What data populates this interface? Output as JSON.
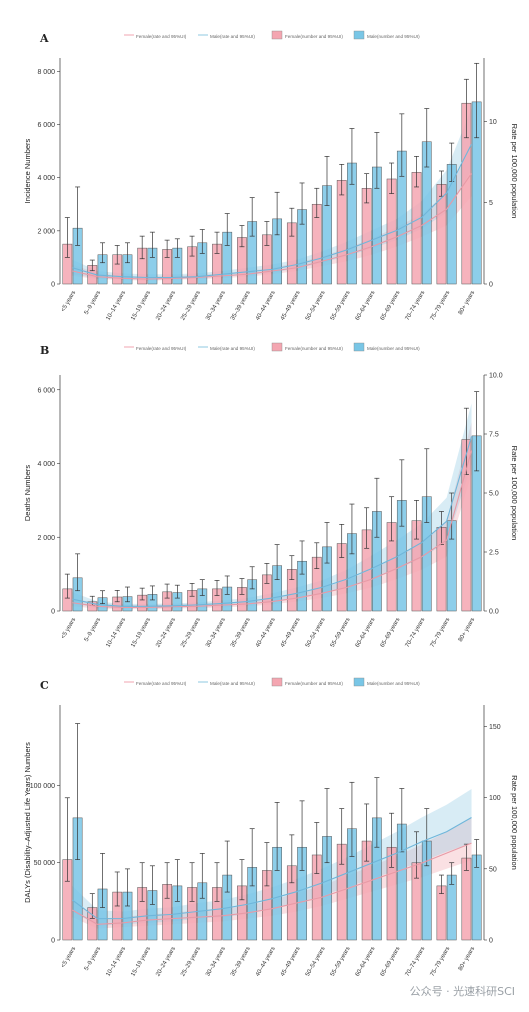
{
  "colors": {
    "female_fill": "#F4A6B1",
    "female_line": "#F0A6B0",
    "male_fill": "#79C6E6",
    "male_line": "#8FC8E2",
    "errorbar": "#333333",
    "axis": "#333333"
  },
  "legend": {
    "female_rate": "Female(rate and 95%UI)",
    "male_rate": "Male(rate and 95%UI)",
    "female_number": "Female(number and 95%UI)",
    "male_number": "Male(number and 95%UI)"
  },
  "watermark": "公众号 · 光速科研SCI",
  "chart_data": [
    {
      "panel": "A",
      "type": "bar",
      "ylabel": "Incidence Numbers",
      "y2label": "Rate per 100,000 population",
      "ylim": [
        0,
        8500
      ],
      "yticks": [
        0,
        2000,
        4000,
        6000,
        8000
      ],
      "y2lim": [
        0,
        13.9
      ],
      "y2ticks": [
        0,
        5,
        10
      ],
      "categories": [
        "<5 years",
        "5–9 years",
        "10–14 years",
        "15–19 years",
        "20–24 years",
        "25–29 years",
        "30–34 years",
        "35–39 years",
        "40–44 years",
        "45–49 years",
        "50–54 years",
        "55–59 years",
        "60–64 years",
        "65–69 years",
        "70–74 years",
        "75–79 years",
        "80+ years"
      ],
      "series": [
        {
          "name": "Female(number and 95%UI)",
          "kind": "bar",
          "values": [
            1500,
            700,
            1100,
            1350,
            1300,
            1400,
            1500,
            1750,
            1850,
            2300,
            3000,
            3900,
            3600,
            3950,
            4200,
            3750,
            6800
          ],
          "lower": [
            1000,
            500,
            750,
            950,
            1000,
            1050,
            1150,
            1400,
            1450,
            1800,
            2500,
            3350,
            3050,
            3400,
            3650,
            3300,
            5500
          ],
          "upper": [
            2500,
            900,
            1450,
            1800,
            1650,
            1800,
            1950,
            2200,
            2350,
            2850,
            3600,
            4500,
            4150,
            4550,
            4800,
            4250,
            7700
          ]
        },
        {
          "name": "Male(number and 95%UI)",
          "kind": "bar",
          "values": [
            2100,
            1100,
            1100,
            1350,
            1350,
            1550,
            1950,
            2350,
            2450,
            2800,
            3700,
            4550,
            4400,
            5000,
            5350,
            4500,
            6850
          ],
          "lower": [
            1450,
            800,
            800,
            1000,
            1000,
            1150,
            1450,
            1800,
            1850,
            2250,
            2950,
            3750,
            3600,
            4050,
            4400,
            3850,
            5500
          ],
          "upper": [
            3650,
            1550,
            1550,
            1950,
            1700,
            2050,
            2650,
            3250,
            3450,
            3800,
            4800,
            5850,
            5700,
            6400,
            6600,
            5300,
            8300
          ]
        },
        {
          "name": "Female(rate and 95%UI)",
          "kind": "line",
          "values": [
            0.8,
            0.45,
            0.35,
            0.3,
            0.35,
            0.4,
            0.5,
            0.6,
            0.8,
            1.0,
            1.4,
            1.8,
            2.3,
            2.9,
            3.6,
            4.6,
            6.8
          ],
          "lower": [
            0.5,
            0.3,
            0.25,
            0.2,
            0.25,
            0.3,
            0.35,
            0.45,
            0.6,
            0.8,
            1.1,
            1.4,
            1.8,
            2.3,
            2.9,
            3.6,
            5.4
          ],
          "upper": [
            1.2,
            0.65,
            0.5,
            0.45,
            0.5,
            0.55,
            0.65,
            0.8,
            1.0,
            1.3,
            1.7,
            2.2,
            2.8,
            3.5,
            4.3,
            5.6,
            8.4
          ]
        },
        {
          "name": "Male(rate and 95%UI)",
          "kind": "line",
          "values": [
            1.0,
            0.55,
            0.45,
            0.4,
            0.4,
            0.45,
            0.6,
            0.75,
            0.9,
            1.2,
            1.6,
            2.1,
            2.7,
            3.3,
            4.1,
            5.6,
            8.6
          ],
          "lower": [
            0.6,
            0.35,
            0.3,
            0.25,
            0.3,
            0.35,
            0.45,
            0.55,
            0.7,
            0.95,
            1.3,
            1.7,
            2.2,
            2.7,
            3.4,
            4.4,
            7.0
          ],
          "upper": [
            1.5,
            0.8,
            0.65,
            0.6,
            0.6,
            0.65,
            0.8,
            1.0,
            1.2,
            1.5,
            2.0,
            2.6,
            3.3,
            4.0,
            5.1,
            7.0,
            10.8
          ]
        }
      ]
    },
    {
      "panel": "B",
      "type": "bar",
      "ylabel": "Deaths Numbers",
      "y2label": "Rate per 100,000 population",
      "ylim": [
        0,
        6400
      ],
      "yticks": [
        0,
        2000,
        4000,
        6000
      ],
      "y2lim": [
        0,
        10.0
      ],
      "y2ticks": [
        0.0,
        2.5,
        5.0,
        7.5,
        10.0
      ],
      "categories": [
        "<5 years",
        "5–9 years",
        "10–14 years",
        "15–19 years",
        "20–24 years",
        "25–29 years",
        "30–34 years",
        "35–39 years",
        "40–44 years",
        "45–49 years",
        "50–54 years",
        "55–59 years",
        "60–64 years",
        "65–69 years",
        "70–74 years",
        "75–79 years",
        "80+ years"
      ],
      "series": [
        {
          "name": "Female(number and 95%UI)",
          "kind": "bar",
          "values": [
            600,
            250,
            380,
            430,
            520,
            560,
            600,
            640,
            980,
            1130,
            1460,
            1830,
            2200,
            2400,
            2450,
            2270,
            4650
          ],
          "lower": [
            350,
            150,
            250,
            300,
            350,
            400,
            420,
            450,
            750,
            850,
            1150,
            1450,
            1700,
            1900,
            1950,
            1800,
            3700
          ],
          "upper": [
            1000,
            400,
            560,
            620,
            730,
            750,
            830,
            880,
            1290,
            1500,
            1850,
            2350,
            2800,
            3100,
            3000,
            2700,
            5500
          ]
        },
        {
          "name": "Male(number and 95%UI)",
          "kind": "bar",
          "values": [
            900,
            360,
            390,
            450,
            500,
            600,
            650,
            850,
            1230,
            1350,
            1740,
            2100,
            2700,
            3000,
            3100,
            2450,
            4750
          ],
          "lower": [
            550,
            200,
            250,
            300,
            350,
            420,
            450,
            600,
            850,
            1000,
            1300,
            1550,
            2000,
            2300,
            2400,
            1950,
            3800
          ],
          "upper": [
            1550,
            550,
            650,
            680,
            700,
            850,
            950,
            1200,
            1800,
            1900,
            2400,
            2900,
            3600,
            4100,
            4400,
            3200,
            5950
          ]
        },
        {
          "name": "Female(rate and 95%UI)",
          "kind": "line",
          "values": [
            0.35,
            0.2,
            0.15,
            0.15,
            0.18,
            0.2,
            0.25,
            0.3,
            0.4,
            0.55,
            0.75,
            1.0,
            1.35,
            1.8,
            2.3,
            3.0,
            6.8
          ],
          "lower": [
            0.2,
            0.1,
            0.08,
            0.08,
            0.1,
            0.12,
            0.15,
            0.2,
            0.28,
            0.4,
            0.55,
            0.75,
            1.0,
            1.35,
            1.75,
            2.3,
            5.8
          ],
          "upper": [
            0.55,
            0.3,
            0.25,
            0.25,
            0.28,
            0.3,
            0.35,
            0.42,
            0.55,
            0.72,
            0.98,
            1.3,
            1.75,
            2.3,
            2.95,
            3.8,
            8.0
          ]
        },
        {
          "name": "Male(rate and 95%UI)",
          "kind": "line",
          "values": [
            0.5,
            0.28,
            0.2,
            0.2,
            0.22,
            0.26,
            0.32,
            0.4,
            0.55,
            0.75,
            1.0,
            1.35,
            1.8,
            2.3,
            2.9,
            3.8,
            7.4
          ],
          "lower": [
            0.3,
            0.15,
            0.12,
            0.12,
            0.14,
            0.17,
            0.22,
            0.28,
            0.4,
            0.55,
            0.75,
            1.0,
            1.35,
            1.75,
            2.25,
            2.9,
            6.2
          ],
          "upper": [
            0.8,
            0.4,
            0.3,
            0.3,
            0.32,
            0.36,
            0.45,
            0.55,
            0.75,
            1.0,
            1.3,
            1.75,
            2.35,
            3.0,
            3.7,
            4.8,
            8.8
          ]
        }
      ]
    },
    {
      "panel": "C",
      "type": "bar",
      "ylabel": "DALYs (Disability–Adjusted Life Years) Numbers",
      "y2label": "Rate per 100,000 population",
      "ylim": [
        0,
        152000
      ],
      "yticks": [
        0,
        50000,
        100000
      ],
      "y2lim": [
        0,
        165
      ],
      "y2ticks": [
        0,
        50,
        100,
        150
      ],
      "categories": [
        "<5 years",
        "5–9 years",
        "10–14 years",
        "15–19 years",
        "20–24 years",
        "25–29 years",
        "30–34 years",
        "35–39 years",
        "40–44 years",
        "45–49 years",
        "50–54 years",
        "55–59 years",
        "60–64 years",
        "65–69 years",
        "70–74 years",
        "75–79 years",
        "80+ years"
      ],
      "series": [
        {
          "name": "Female(number and 95%UI)",
          "kind": "bar",
          "values": [
            52000,
            21000,
            31000,
            34000,
            36000,
            34000,
            34000,
            35000,
            45000,
            48000,
            55000,
            62000,
            64000,
            60000,
            50000,
            35000,
            53000
          ],
          "lower": [
            38000,
            14000,
            22000,
            25000,
            27000,
            25000,
            25000,
            26000,
            35000,
            37000,
            43000,
            49000,
            51000,
            47000,
            40000,
            30000,
            45000
          ],
          "upper": [
            92000,
            30000,
            44000,
            50000,
            50000,
            50000,
            50000,
            52000,
            63000,
            68000,
            76000,
            85000,
            88000,
            82000,
            70000,
            42000,
            62000
          ]
        },
        {
          "name": "Male(number and 95%UI)",
          "kind": "bar",
          "values": [
            79000,
            33000,
            31000,
            32000,
            35000,
            37000,
            42000,
            47000,
            60000,
            60000,
            67000,
            72000,
            79000,
            75000,
            64000,
            42000,
            55000
          ],
          "lower": [
            52000,
            21000,
            22000,
            23000,
            25000,
            27000,
            31000,
            35000,
            45000,
            45000,
            50000,
            54000,
            60000,
            57000,
            48000,
            36000,
            47000
          ],
          "upper": [
            140000,
            56000,
            46000,
            48000,
            52000,
            56000,
            64000,
            72000,
            89000,
            90000,
            98000,
            102000,
            105000,
            98000,
            85000,
            50000,
            65000
          ]
        },
        {
          "name": "Female(rate and 95%UI)",
          "kind": "line",
          "values": [
            21,
            11,
            12,
            14,
            15,
            16,
            17,
            19,
            22,
            26,
            30,
            36,
            42,
            48,
            54,
            61,
            68
          ],
          "lower": [
            16,
            8,
            9,
            10,
            11,
            12,
            13,
            15,
            17,
            20,
            24,
            29,
            34,
            39,
            44,
            50,
            56
          ],
          "upper": [
            28,
            15,
            16,
            18,
            19,
            21,
            22,
            24,
            28,
            33,
            38,
            45,
            52,
            59,
            67,
            76,
            86
          ]
        },
        {
          "name": "Male(rate and 95%UI)",
          "kind": "line",
          "values": [
            28,
            15,
            15,
            17,
            18,
            20,
            22,
            25,
            29,
            34,
            40,
            47,
            54,
            61,
            69,
            76,
            86
          ],
          "lower": [
            20,
            10,
            11,
            12,
            13,
            15,
            16,
            18,
            22,
            26,
            31,
            37,
            43,
            49,
            55,
            62,
            68
          ],
          "upper": [
            38,
            21,
            20,
            22,
            23,
            26,
            28,
            32,
            37,
            43,
            50,
            58,
            67,
            76,
            86,
            95,
            106
          ]
        }
      ]
    }
  ]
}
